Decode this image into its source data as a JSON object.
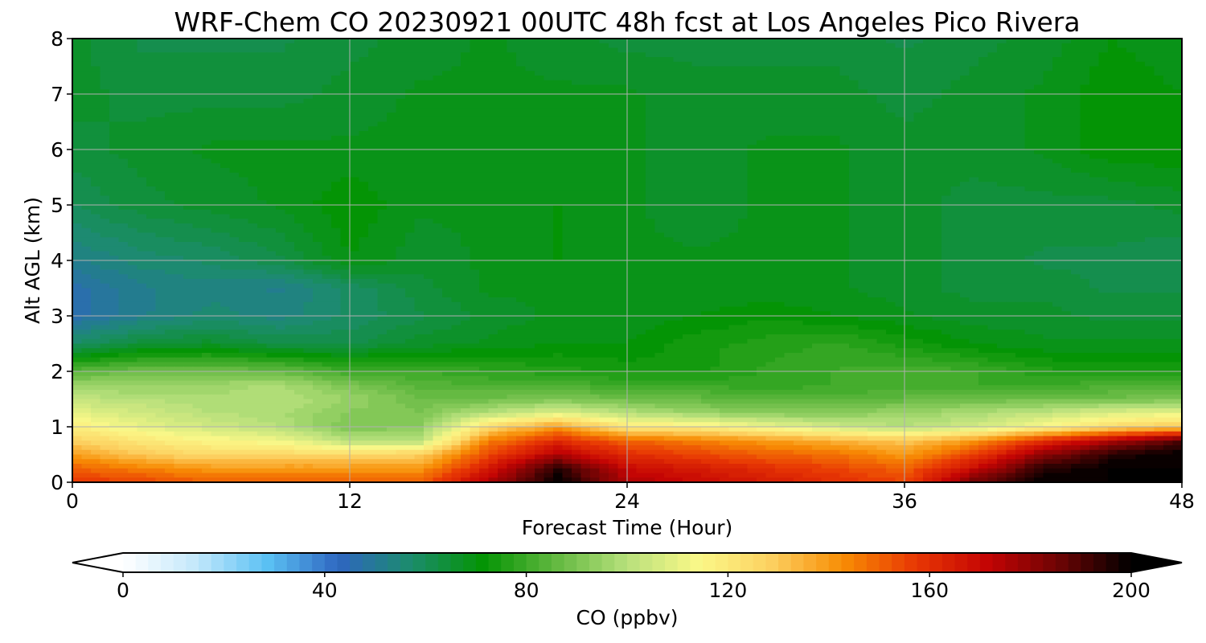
{
  "chart_data": {
    "type": "heatmap",
    "title": "WRF-Chem CO  20230921 00UTC 48h fcst at Los Angeles Pico Rivera",
    "xlabel": "Forecast Time (Hour)",
    "ylabel": "Alt AGL (km)",
    "xlim": [
      0,
      48
    ],
    "ylim": [
      0,
      8
    ],
    "xticks": [
      "0",
      "12",
      "24",
      "36",
      "48"
    ],
    "yticks": [
      "0",
      "1",
      "2",
      "3",
      "4",
      "5",
      "6",
      "7",
      "8"
    ],
    "grid": true,
    "x": [
      0,
      3,
      6,
      9,
      12,
      15,
      18,
      21,
      24,
      27,
      30,
      33,
      36,
      39,
      42,
      45,
      48
    ],
    "y": [
      0,
      0.25,
      0.5,
      0.75,
      1.0,
      1.25,
      1.5,
      1.75,
      2.0,
      2.5,
      3.0,
      3.5,
      4.0,
      5.0,
      6.0,
      7.0,
      8.0
    ],
    "z": [
      [
        158,
        155,
        150,
        150,
        150,
        150,
        175,
        200,
        175,
        170,
        165,
        160,
        155,
        185,
        200,
        200,
        200
      ],
      [
        150,
        145,
        140,
        140,
        140,
        140,
        165,
        195,
        170,
        165,
        160,
        155,
        150,
        170,
        195,
        200,
        200
      ],
      [
        140,
        130,
        125,
        125,
        125,
        128,
        155,
        175,
        160,
        155,
        150,
        148,
        140,
        155,
        180,
        195,
        200
      ],
      [
        128,
        120,
        115,
        112,
        100,
        100,
        145,
        160,
        150,
        145,
        140,
        135,
        130,
        140,
        160,
        175,
        190
      ],
      [
        118,
        110,
        105,
        100,
        90,
        92,
        125,
        140,
        120,
        118,
        112,
        105,
        100,
        105,
        115,
        125,
        130
      ],
      [
        110,
        105,
        100,
        98,
        92,
        90,
        100,
        108,
        100,
        95,
        92,
        92,
        95,
        98,
        102,
        108,
        110
      ],
      [
        102,
        100,
        98,
        100,
        95,
        88,
        88,
        90,
        88,
        86,
        84,
        84,
        86,
        88,
        88,
        88,
        90
      ],
      [
        95,
        94,
        96,
        98,
        90,
        84,
        82,
        82,
        80,
        80,
        78,
        80,
        80,
        80,
        80,
        82,
        84
      ],
      [
        84,
        88,
        88,
        86,
        80,
        80,
        78,
        76,
        74,
        74,
        78,
        80,
        82,
        80,
        76,
        74,
        74
      ],
      [
        58,
        64,
        66,
        62,
        62,
        66,
        68,
        70,
        70,
        74,
        76,
        78,
        74,
        70,
        68,
        68,
        68
      ],
      [
        46,
        52,
        56,
        54,
        58,
        62,
        66,
        68,
        68,
        70,
        72,
        70,
        68,
        66,
        66,
        64,
        64
      ],
      [
        46,
        52,
        54,
        52,
        58,
        64,
        68,
        68,
        68,
        68,
        68,
        68,
        66,
        64,
        64,
        62,
        62
      ],
      [
        52,
        56,
        58,
        62,
        70,
        66,
        68,
        70,
        68,
        68,
        68,
        68,
        66,
        64,
        62,
        62,
        60
      ],
      [
        60,
        64,
        66,
        68,
        72,
        68,
        68,
        70,
        68,
        66,
        68,
        68,
        66,
        64,
        64,
        64,
        66
      ],
      [
        64,
        66,
        68,
        68,
        68,
        68,
        68,
        68,
        68,
        66,
        68,
        68,
        66,
        66,
        68,
        72,
        72
      ],
      [
        66,
        64,
        64,
        64,
        66,
        68,
        68,
        68,
        68,
        66,
        66,
        66,
        64,
        66,
        68,
        72,
        70
      ],
      [
        66,
        62,
        62,
        62,
        64,
        66,
        68,
        66,
        64,
        64,
        64,
        64,
        62,
        64,
        66,
        70,
        68
      ]
    ],
    "colorbar": {
      "label": "CO  (ppbv)",
      "vmin": 0,
      "vmax": 200,
      "step": 2.5,
      "extend": "both",
      "ticks": [
        "0",
        "40",
        "80",
        "120",
        "160",
        "200"
      ],
      "colors": [
        "#ffffff",
        "#c4e8fb",
        "#5bc1f4",
        "#2e66c0",
        "#1c8c6c",
        "#049404",
        "#62b840",
        "#b8e07c",
        "#fbf888",
        "#fcd060",
        "#f88c04",
        "#e83804",
        "#c40404",
        "#6c0404",
        "#000000"
      ]
    }
  }
}
